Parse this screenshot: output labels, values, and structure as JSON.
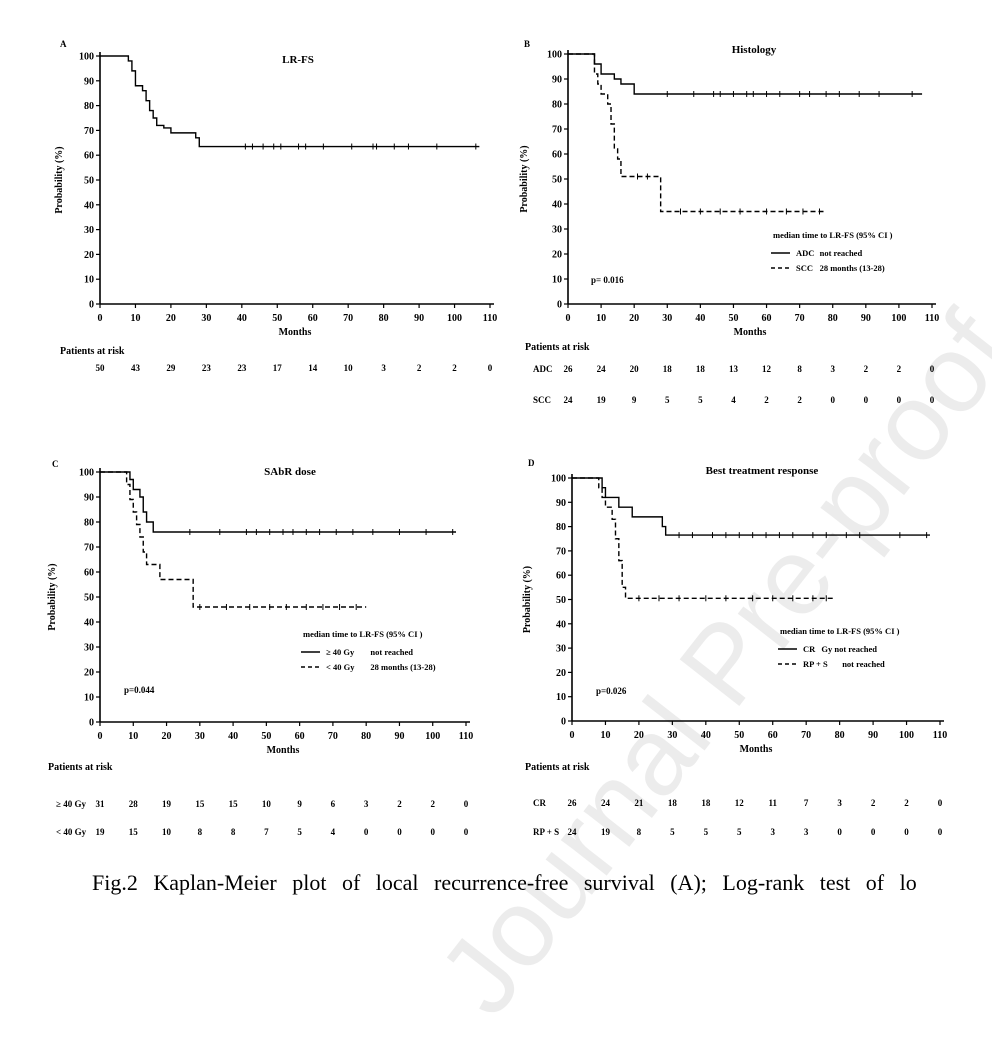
{
  "caption": "Fig.2 Kaplan-Meier plot of local recurrence-free survival (A); Log-rank test of lo",
  "watermark": "Journal Pre-proof",
  "chart_data": [
    {
      "type": "line",
      "panel": "A",
      "title": "LR-FS",
      "xlabel": "Months",
      "ylabel": "Probability (%)",
      "xlim": [
        0,
        110
      ],
      "ylim": [
        0,
        100
      ],
      "xticks": [
        0,
        10,
        20,
        30,
        40,
        50,
        60,
        70,
        80,
        90,
        100,
        110
      ],
      "yticks": [
        0,
        10,
        20,
        30,
        40,
        50,
        60,
        70,
        80,
        90,
        100
      ],
      "series": [
        {
          "name": "",
          "dash": false,
          "steps": [
            [
              0,
              100
            ],
            [
              8,
              98
            ],
            [
              9,
              94
            ],
            [
              10,
              88
            ],
            [
              12,
              86
            ],
            [
              13,
              82
            ],
            [
              14,
              78
            ],
            [
              15,
              75
            ],
            [
              16,
              72
            ],
            [
              18,
              71
            ],
            [
              20,
              69
            ],
            [
              27,
              67
            ],
            [
              28,
              63.5
            ],
            [
              107,
              63.5
            ]
          ],
          "censor": [
            41,
            43,
            46,
            49,
            51,
            56,
            58,
            63,
            71,
            77,
            78,
            83,
            87,
            95,
            106
          ]
        }
      ],
      "p_value": "",
      "legend_header": "",
      "risk_header": "Patients at risk",
      "risk_rows": [
        {
          "label": "",
          "values": [
            "50",
            "43",
            "29",
            "23",
            "23",
            "17",
            "14",
            "10",
            "3",
            "2",
            "2",
            "0"
          ]
        }
      ]
    },
    {
      "type": "line",
      "panel": "B",
      "title": "Histology",
      "xlabel": "Months",
      "ylabel": "Probability (%)",
      "xlim": [
        0,
        110
      ],
      "ylim": [
        0,
        100
      ],
      "xticks": [
        0,
        10,
        20,
        30,
        40,
        50,
        60,
        70,
        80,
        90,
        100,
        110
      ],
      "yticks": [
        0,
        10,
        20,
        30,
        40,
        50,
        60,
        70,
        80,
        90,
        100
      ],
      "series": [
        {
          "name": "ADC",
          "note": "not reached",
          "dash": false,
          "steps": [
            [
              0,
              100
            ],
            [
              8,
              96
            ],
            [
              10,
              92
            ],
            [
              14,
              90
            ],
            [
              16,
              88
            ],
            [
              20,
              84
            ],
            [
              107,
              84
            ]
          ],
          "censor": [
            30,
            38,
            44,
            46,
            50,
            54,
            56,
            60,
            64,
            70,
            73,
            78,
            82,
            88,
            94,
            104
          ]
        },
        {
          "name": "SCC",
          "note": "28 months   (13-28)",
          "dash": true,
          "steps": [
            [
              0,
              100
            ],
            [
              8,
              92
            ],
            [
              9,
              88
            ],
            [
              10,
              84
            ],
            [
              12,
              80
            ],
            [
              13,
              72
            ],
            [
              14,
              62
            ],
            [
              15,
              58
            ],
            [
              16,
              51
            ],
            [
              28,
              51
            ],
            [
              28,
              37
            ],
            [
              78,
              37
            ]
          ],
          "censor": [
            21,
            24,
            34,
            40,
            46,
            52,
            60,
            66,
            71,
            76
          ]
        }
      ],
      "p_value": "p= 0.016",
      "legend_header": "median time to LR-FS    (95% CI )",
      "risk_header": "Patients at risk",
      "risk_rows": [
        {
          "label": "ADC",
          "values": [
            "26",
            "24",
            "20",
            "18",
            "18",
            "13",
            "12",
            "8",
            "3",
            "2",
            "2",
            "0"
          ]
        },
        {
          "label": "SCC",
          "values": [
            "24",
            "19",
            "9",
            "5",
            "5",
            "4",
            "2",
            "2",
            "0",
            "0",
            "0",
            "0"
          ]
        }
      ]
    },
    {
      "type": "line",
      "panel": "C",
      "title": "SAbR dose",
      "xlabel": "Months",
      "ylabel": "Probability (%)",
      "xlim": [
        0,
        110
      ],
      "ylim": [
        0,
        100
      ],
      "xticks": [
        0,
        10,
        20,
        30,
        40,
        50,
        60,
        70,
        80,
        90,
        100,
        110
      ],
      "yticks": [
        0,
        10,
        20,
        30,
        40,
        50,
        60,
        70,
        80,
        90,
        100
      ],
      "series": [
        {
          "name": "≥ 40 Gy",
          "note": "not reached",
          "dash": false,
          "steps": [
            [
              0,
              100
            ],
            [
              9,
              97
            ],
            [
              10,
              93
            ],
            [
              12,
              90
            ],
            [
              13,
              84
            ],
            [
              14,
              80
            ],
            [
              16,
              76
            ],
            [
              107,
              76
            ]
          ],
          "censor": [
            27,
            36,
            44,
            47,
            51,
            55,
            58,
            62,
            66,
            71,
            76,
            82,
            90,
            98,
            106
          ]
        },
        {
          "name": "< 40 Gy",
          "note": "28 months   (13-28)",
          "dash": true,
          "steps": [
            [
              0,
              100
            ],
            [
              8,
              95
            ],
            [
              9,
              89
            ],
            [
              10,
              84
            ],
            [
              11,
              79
            ],
            [
              12,
              74
            ],
            [
              13,
              68
            ],
            [
              14,
              63
            ],
            [
              18,
              57
            ],
            [
              27,
              57
            ],
            [
              28,
              46
            ],
            [
              80,
              46
            ]
          ],
          "censor": [
            30,
            38,
            45,
            51,
            56,
            62,
            67,
            72,
            77
          ]
        }
      ],
      "p_value": "p=0.044",
      "legend_header": "median time to LR-FS    (95% CI )",
      "risk_header": "Patients at risk",
      "risk_rows": [
        {
          "label": "≥ 40 Gy",
          "values": [
            "31",
            "28",
            "19",
            "15",
            "15",
            "10",
            "9",
            "6",
            "3",
            "2",
            "2",
            "0"
          ]
        },
        {
          "label": "< 40 Gy",
          "values": [
            "19",
            "15",
            "10",
            "8",
            "8",
            "7",
            "5",
            "4",
            "0",
            "0",
            "0",
            "0"
          ]
        }
      ]
    },
    {
      "type": "line",
      "panel": "D",
      "title": "Best treatment response",
      "xlabel": "Months",
      "ylabel": "Probability (%)",
      "xlim": [
        0,
        110
      ],
      "ylim": [
        0,
        100
      ],
      "xticks": [
        0,
        10,
        20,
        30,
        40,
        50,
        60,
        70,
        80,
        90,
        100,
        110
      ],
      "yticks": [
        0,
        10,
        20,
        30,
        40,
        50,
        60,
        70,
        80,
        90,
        100
      ],
      "series": [
        {
          "name": "CR",
          "note": "Gy  not reached",
          "dash": false,
          "steps": [
            [
              0,
              100
            ],
            [
              9,
              96
            ],
            [
              10,
              92
            ],
            [
              14,
              88
            ],
            [
              18,
              84
            ],
            [
              27,
              80
            ],
            [
              28,
              76.5
            ],
            [
              107,
              76.5
            ]
          ],
          "censor": [
            32,
            36,
            42,
            46,
            50,
            54,
            58,
            62,
            66,
            72,
            76,
            82,
            86,
            98,
            106
          ]
        },
        {
          "name": "RP + S",
          "note": "not reached",
          "dash": true,
          "steps": [
            [
              0,
              100
            ],
            [
              8,
              96
            ],
            [
              9,
              92
            ],
            [
              10,
              88
            ],
            [
              12,
              83
            ],
            [
              13,
              75
            ],
            [
              14,
              66
            ],
            [
              15,
              55
            ],
            [
              16,
              50.5
            ],
            [
              78,
              50.5
            ]
          ],
          "censor": [
            20,
            26,
            32,
            40,
            46,
            54,
            60,
            66,
            72,
            76
          ]
        }
      ],
      "p_value": "p=0.026",
      "legend_header": "median time to LR-FS    (95% CI )",
      "risk_header": "Patients at risk",
      "risk_rows": [
        {
          "label": "CR",
          "values": [
            "26",
            "24",
            "21",
            "18",
            "18",
            "12",
            "11",
            "7",
            "3",
            "2",
            "2",
            "0"
          ]
        },
        {
          "label": "RP + S",
          "values": [
            "24",
            "19",
            "8",
            "5",
            "5",
            "5",
            "3",
            "3",
            "0",
            "0",
            "0",
            "0"
          ]
        }
      ]
    }
  ]
}
